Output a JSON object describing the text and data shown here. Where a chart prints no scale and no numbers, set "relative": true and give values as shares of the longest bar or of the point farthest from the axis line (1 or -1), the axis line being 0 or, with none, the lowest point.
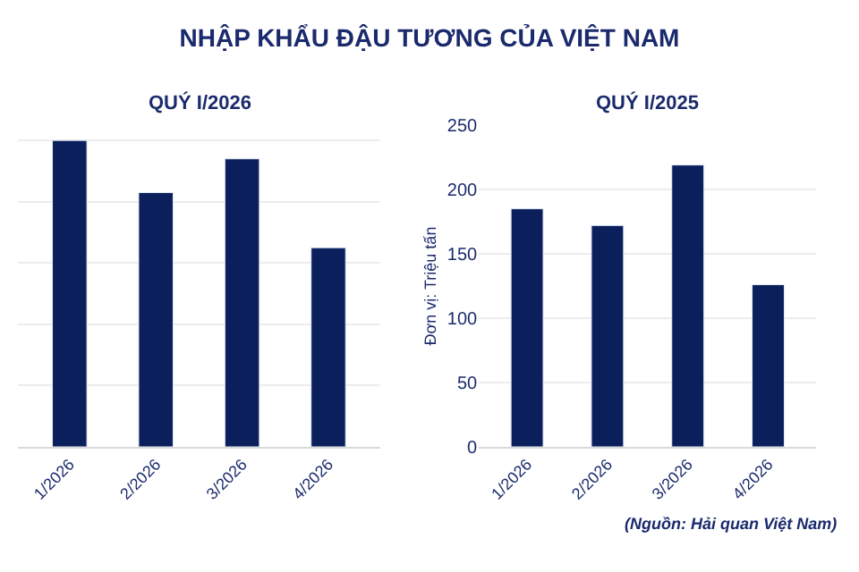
{
  "chart_data": [
    {
      "type": "bar",
      "title": "NHẬP KHẨU ĐẬU TƯƠNG CỦA VIỆT NAM",
      "subtitle": "QUÝ I/2026",
      "categories": [
        "1/2026",
        "2/2026",
        "3/2026",
        "4/2026"
      ],
      "values": [
        1,
        0.83,
        0.94,
        0.65
      ],
      "relative": true,
      "color": "#0b1f5c",
      "grid": "y"
    },
    {
      "type": "bar",
      "subtitle": "QUÝ I/2025",
      "ylabel": "Đơn vị: Triệu tấn",
      "categories": [
        "1/2026",
        "2/2026",
        "3/2026",
        "4/2026"
      ],
      "values": [
        185,
        172,
        219,
        126
      ],
      "color": "#0b1f5c",
      "ylim": [
        0,
        250
      ],
      "yticks": [
        0,
        50,
        100,
        150,
        200,
        250
      ],
      "grid": "y",
      "annotations": [
        "(Nguồn: Hải quan Việt Nam)"
      ]
    }
  ]
}
